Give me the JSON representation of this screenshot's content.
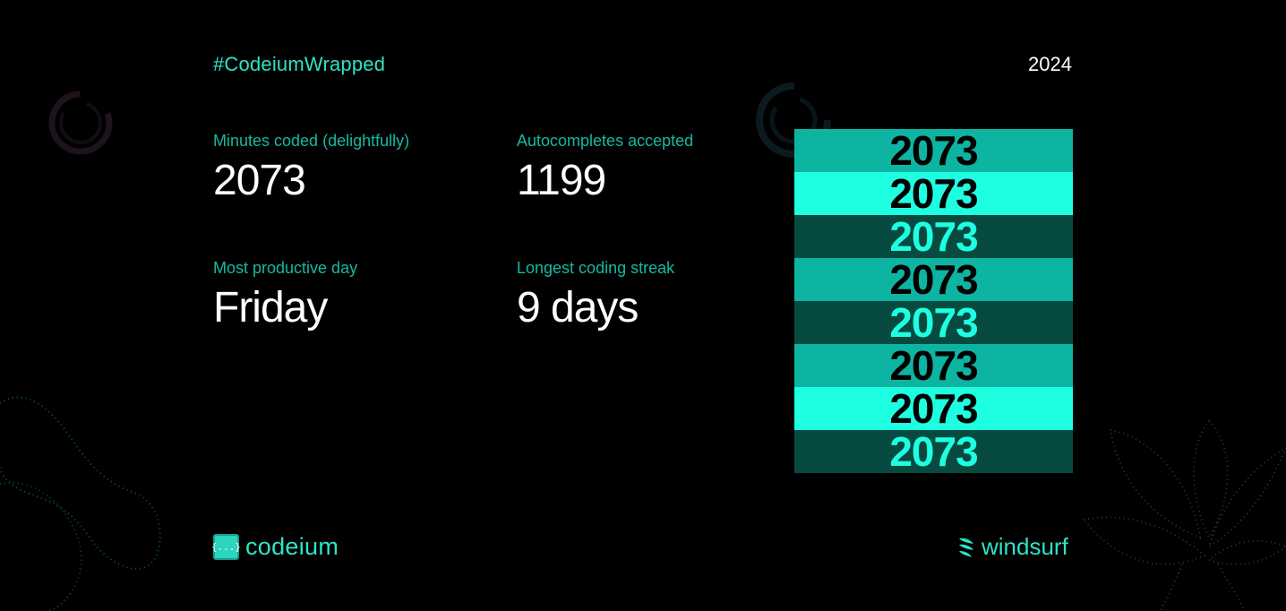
{
  "header": {
    "hashtag": "#CodeiumWrapped",
    "year": "2024"
  },
  "stats": [
    {
      "label": "Minutes coded (delightfully)",
      "value": "2073"
    },
    {
      "label": "Autocompletes accepted",
      "value": "1199"
    },
    {
      "label": "Most productive day",
      "value": "Friday"
    },
    {
      "label": "Longest coding streak",
      "value": "9 days"
    }
  ],
  "stack": {
    "value": "2073",
    "rows": [
      {
        "bg": "#0db4a2",
        "fg": "#000000"
      },
      {
        "bg": "#1effe2",
        "fg": "#000000"
      },
      {
        "bg": "#064a40",
        "fg": "#1effe2"
      },
      {
        "bg": "#0db4a2",
        "fg": "#000000"
      },
      {
        "bg": "#064a40",
        "fg": "#1effe2"
      },
      {
        "bg": "#0db4a2",
        "fg": "#000000"
      },
      {
        "bg": "#1effe2",
        "fg": "#000000"
      },
      {
        "bg": "#064a40",
        "fg": "#1effe2"
      }
    ]
  },
  "footer": {
    "codeium_logo_glyph": "{...}",
    "codeium_label": "codeium",
    "windsurf_label": "windsurf",
    "codeium_icon": "codeium-logo-icon",
    "windsurf_icon": "windsurf-logo-icon"
  },
  "colors": {
    "accent": "#2de3c8",
    "label": "#16b9a3",
    "background": "#000000"
  }
}
